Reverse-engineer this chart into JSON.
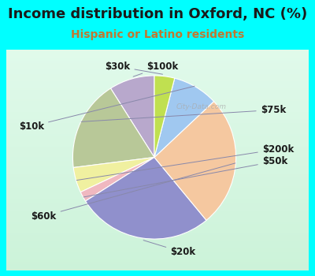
{
  "title": "Income distribution in Oxford, NC (%)",
  "subtitle": "Hispanic or Latino residents",
  "background_color": "#00FFFF",
  "chart_bg_top": "#e8f5f0",
  "chart_bg_bottom": "#d0eedd",
  "labels": [
    "$100k",
    "$75k",
    "$200k",
    "$50k",
    "$20k",
    "$60k",
    "$10k",
    "$30k"
  ],
  "values": [
    9,
    18,
    5,
    2,
    27,
    26,
    9,
    4
  ],
  "colors": [
    "#b8a8cc",
    "#b8c898",
    "#f0f0a0",
    "#f0b8c0",
    "#9090cc",
    "#f5c8a0",
    "#a0c8f0",
    "#c0e050"
  ],
  "watermark": "City-Data.com",
  "title_fontsize": 13,
  "subtitle_fontsize": 10,
  "label_fontsize": 8.5,
  "startangle": 90
}
